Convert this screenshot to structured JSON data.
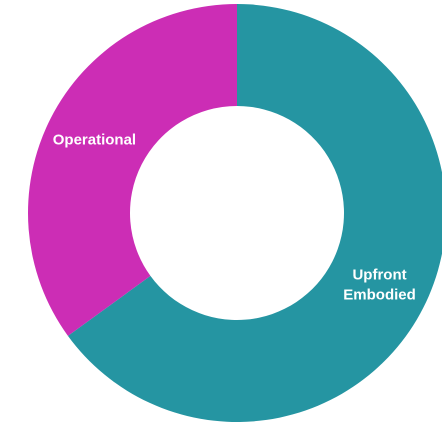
{
  "chart_data": {
    "type": "pie",
    "donut": true,
    "categories": [
      "Upfront Embodied",
      "Operational"
    ],
    "values": [
      65,
      35
    ],
    "colors": [
      "#2595a2",
      "#cc2db5"
    ]
  }
}
